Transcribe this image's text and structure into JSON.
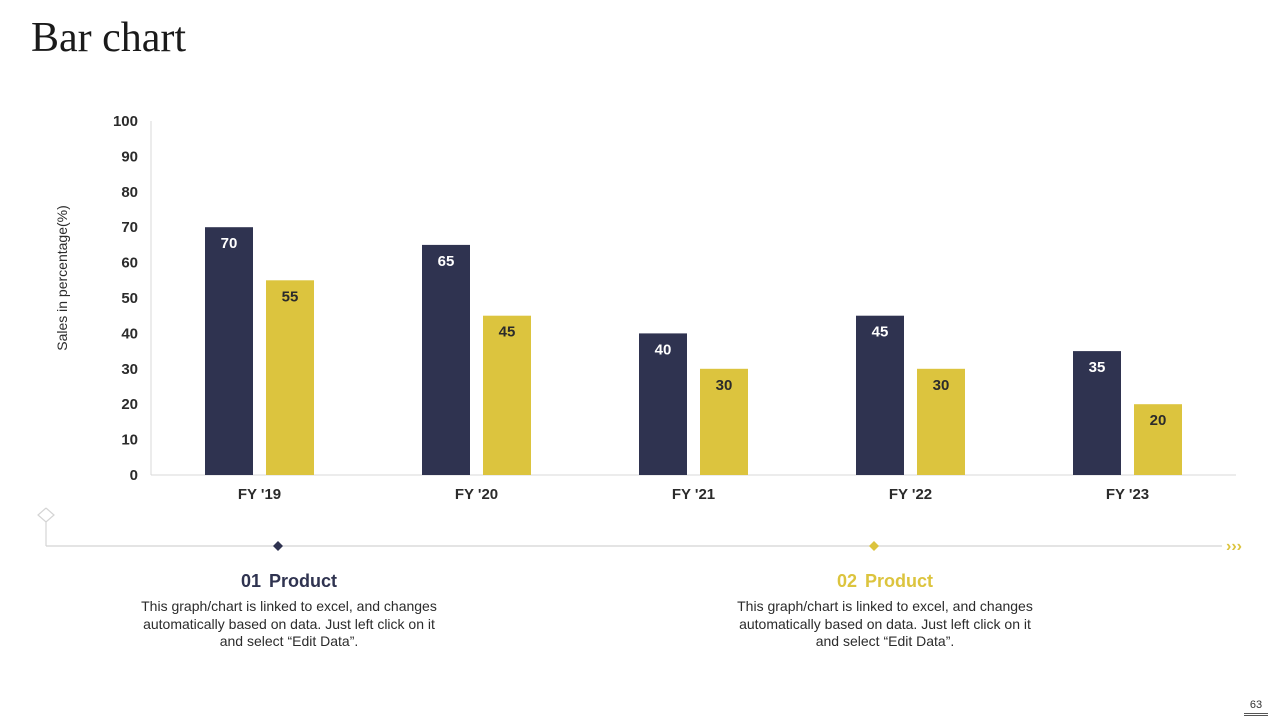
{
  "page": {
    "title": "Bar chart",
    "page_number": "63"
  },
  "chart_data": {
    "type": "bar",
    "title": "Bar chart",
    "xlabel": "",
    "ylabel": "Sales in percentage(%)",
    "ylim": [
      0,
      100
    ],
    "ytick_step": 10,
    "yticks": [
      "0",
      "10",
      "20",
      "30",
      "40",
      "50",
      "60",
      "70",
      "80",
      "90",
      "100"
    ],
    "categories": [
      "FY '19",
      "FY '20",
      "FY '21",
      "FY '22",
      "FY '23"
    ],
    "series": [
      {
        "name": "01 Product",
        "values": [
          70,
          65,
          40,
          45,
          35
        ],
        "color": "#2f3350",
        "label_color": "#ffffff"
      },
      {
        "name": "02 Product",
        "values": [
          55,
          45,
          30,
          30,
          20
        ],
        "color": "#dcc43e",
        "label_color": "#2b2b2b"
      }
    ],
    "grid": false,
    "legend": "bottom"
  },
  "legend": {
    "items": [
      {
        "number": "01",
        "name": "Product",
        "color": "#2f3350",
        "description": "This graph/chart is linked to excel, and changes automatically based on data. Just left click on it and select “Edit Data”."
      },
      {
        "number": "02",
        "name": "Product",
        "color": "#dcc43e",
        "description": "This graph/chart is linked to excel, and changes automatically based on data. Just left click on it and select “Edit Data”."
      }
    ]
  },
  "decor": {
    "arrow_glyph": "›››",
    "line_color": "#d0d0d0"
  }
}
